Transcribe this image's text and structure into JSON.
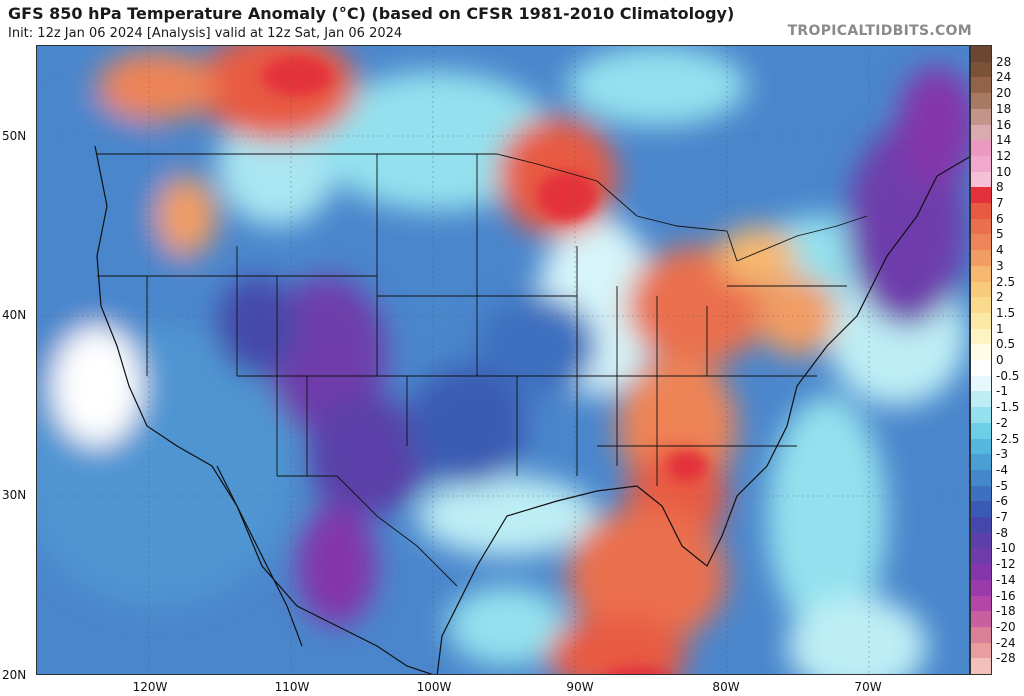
{
  "header": {
    "title": "GFS 850 hPa Temperature Anomaly (°C) (based on CFSR 1981-2010 Climatology)",
    "subtitle": "Init: 12z Jan 06 2024  [Analysis]   valid at 12z Sat, Jan 06 2024",
    "source": "TROPICALTIDBITS.COM"
  },
  "map": {
    "lat_labels": [
      "50N",
      "40N",
      "30N",
      "20N"
    ],
    "lon_labels": [
      "120W",
      "110W",
      "100W",
      "90W",
      "80W",
      "70W"
    ]
  },
  "colorbar": {
    "labels": [
      "28",
      "24",
      "20",
      "18",
      "16",
      "14",
      "12",
      "10",
      "8",
      "7",
      "6",
      "5",
      "4",
      "3",
      "2.5",
      "2",
      "1.5",
      "1",
      "0.5",
      "0",
      "-0.5",
      "-1",
      "-1.5",
      "-2",
      "-2.5",
      "-3",
      "-4",
      "-5",
      "-6",
      "-7",
      "-8",
      "-10",
      "-12",
      "-14",
      "-16",
      "-18",
      "-20",
      "-24",
      "-28"
    ],
    "colors": [
      "#7a5238",
      "#936349",
      "#a97a63",
      "#c3948a",
      "#d9abb0",
      "#ec99c0",
      "#f0a8cc",
      "#f5bfd6",
      "#e4303a",
      "#e85a42",
      "#ea6f4e",
      "#ee8457",
      "#f29d63",
      "#f6b770",
      "#f8cb7c",
      "#fadb8e",
      "#fce9a5",
      "#fdf3c3",
      "#fffbe6",
      "#ffffff",
      "#e6f8fb",
      "#bdeef5",
      "#93e1ee",
      "#6fcee7",
      "#54b7de",
      "#4aa0d5",
      "#4288cb",
      "#3d70bf",
      "#3a5bb3",
      "#4548aa",
      "#5a40a8",
      "#6e3cab",
      "#8436aa",
      "#9a3aab",
      "#b347a8",
      "#c8609f",
      "#d97f98",
      "#e89e9e",
      "#f2c0b8"
    ]
  }
}
